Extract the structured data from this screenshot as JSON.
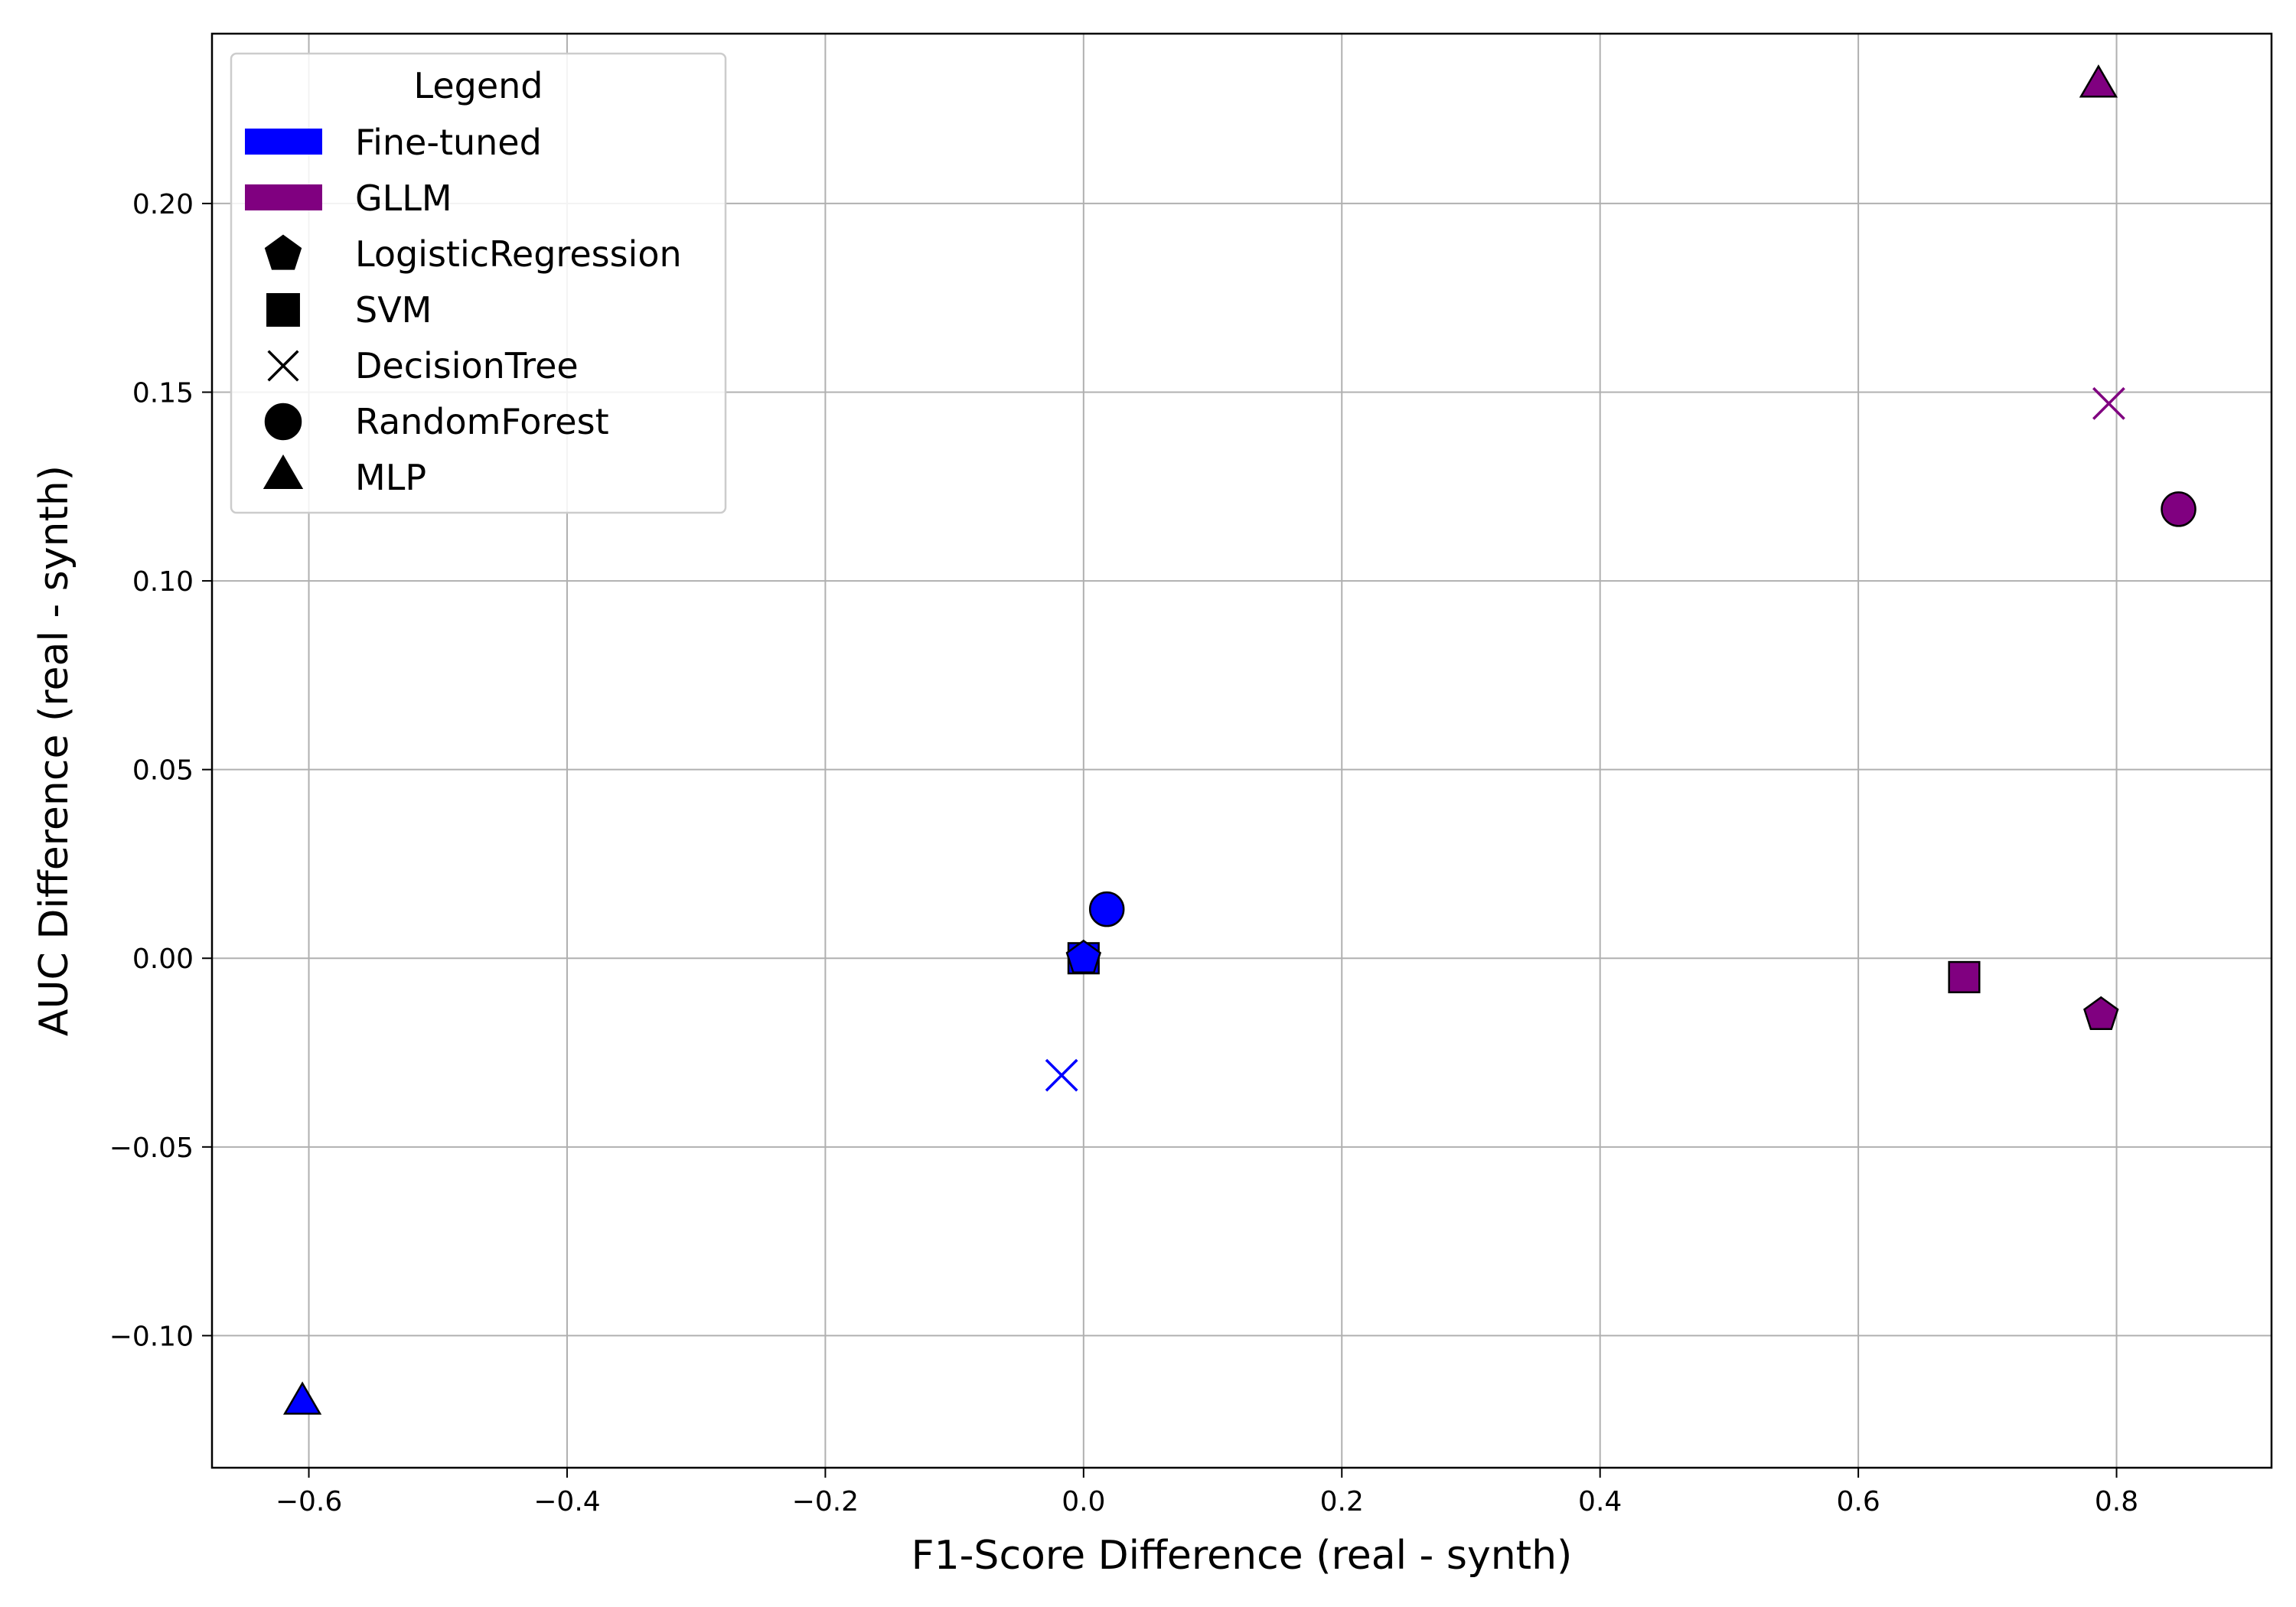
{
  "chart_data": {
    "type": "scatter",
    "title": "",
    "xlabel": "F1-Score Difference (real - synth)",
    "ylabel": "AUC Difference (real - synth)",
    "xlim": [
      -0.675,
      0.92
    ],
    "ylim": [
      -0.135,
      0.245
    ],
    "xticks": [
      -0.6,
      -0.4,
      -0.2,
      0.0,
      0.2,
      0.4,
      0.6,
      0.8
    ],
    "xtick_labels": [
      "−0.6",
      "−0.4",
      "−0.2",
      "0.0",
      "0.2",
      "0.4",
      "0.6",
      "0.8"
    ],
    "yticks": [
      -0.1,
      -0.05,
      0.0,
      0.05,
      0.1,
      0.15,
      0.2
    ],
    "ytick_labels": [
      "−0.10",
      "−0.05",
      "0.00",
      "0.05",
      "0.10",
      "0.15",
      "0.20"
    ],
    "grid": true,
    "legend": {
      "title": "Legend",
      "placement": "upper-left",
      "color_entries": [
        {
          "label": "Fine-tuned",
          "color": "#0000ff"
        },
        {
          "label": "GLLM",
          "color": "#800080"
        }
      ],
      "marker_entries": [
        {
          "label": "LogisticRegression",
          "marker": "pentagon"
        },
        {
          "label": "SVM",
          "marker": "square"
        },
        {
          "label": "DecisionTree",
          "marker": "x"
        },
        {
          "label": "RandomForest",
          "marker": "circle"
        },
        {
          "label": "MLP",
          "marker": "triangle"
        }
      ]
    },
    "series": [
      {
        "name": "Fine-tuned",
        "color": "#0000ff",
        "points": [
          {
            "model": "LogisticRegression",
            "marker": "pentagon",
            "x": 0.0,
            "y": 0.0
          },
          {
            "model": "SVM",
            "marker": "square",
            "x": 0.0,
            "y": 0.0
          },
          {
            "model": "DecisionTree",
            "marker": "x",
            "x": -0.017,
            "y": -0.031
          },
          {
            "model": "RandomForest",
            "marker": "circle",
            "x": 0.018,
            "y": 0.013
          },
          {
            "model": "MLP",
            "marker": "triangle",
            "x": -0.605,
            "y": -0.118
          }
        ]
      },
      {
        "name": "GLLM",
        "color": "#800080",
        "points": [
          {
            "model": "LogisticRegression",
            "marker": "pentagon",
            "x": 0.788,
            "y": -0.015
          },
          {
            "model": "SVM",
            "marker": "square",
            "x": 0.682,
            "y": -0.005
          },
          {
            "model": "DecisionTree",
            "marker": "x",
            "x": 0.794,
            "y": 0.147
          },
          {
            "model": "RandomForest",
            "marker": "circle",
            "x": 0.848,
            "y": 0.119
          },
          {
            "model": "MLP",
            "marker": "triangle",
            "x": 0.786,
            "y": 0.231
          }
        ]
      }
    ]
  }
}
